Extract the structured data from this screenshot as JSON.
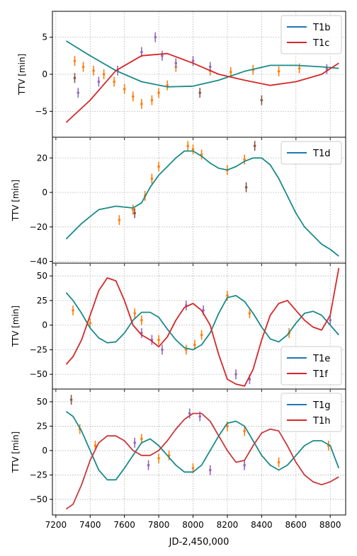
{
  "figure": {
    "xlabel": "JD-2,450,000",
    "xticks": [
      7200,
      7400,
      7600,
      7800,
      8000,
      8200,
      8400,
      8600,
      8800
    ],
    "xlim": [
      7180,
      8890
    ]
  },
  "chart_data": [
    {
      "type": "line",
      "ylabel": "TTV [min]",
      "ylim": [
        -8.5,
        8.5
      ],
      "yticks": [
        -5,
        0,
        5
      ],
      "grid": true,
      "legend_position": "top-right",
      "series": [
        {
          "name": "T1b",
          "color": "#1f77b4",
          "model_color": "#1a8a8a",
          "x": [
            7260,
            7400,
            7550,
            7700,
            7850,
            8000,
            8150,
            8300,
            8450,
            8600,
            8750,
            8850
          ],
          "y": [
            4.5,
            2.5,
            0.5,
            -1.0,
            -1.7,
            -1.6,
            -0.8,
            0.4,
            1.2,
            1.2,
            1.0,
            0.8
          ]
        },
        {
          "name": "T1c",
          "color": "#d62728",
          "model_color": "#d62728",
          "x": [
            7260,
            7400,
            7550,
            7700,
            7850,
            8000,
            8150,
            8300,
            8450,
            8600,
            8750,
            8850
          ],
          "y": [
            -6.5,
            -3.5,
            0.5,
            2.5,
            2.8,
            1.5,
            0.0,
            -0.8,
            -1.5,
            -1.0,
            0.0,
            1.5
          ]
        }
      ],
      "observations": [
        {
          "color": "#ff7f0e",
          "x": [
            7310,
            7360,
            7420,
            7480,
            7540,
            7600,
            7650,
            7700,
            7760,
            7800,
            7850,
            7900,
            8100,
            8220,
            8350,
            8500,
            8620
          ],
          "y": [
            1.8,
            1.0,
            0.5,
            0.0,
            -1.0,
            -2.0,
            -3.0,
            -4.0,
            -3.5,
            -2.5,
            -1.5,
            1.0,
            0.5,
            0.3,
            0.6,
            0.4,
            0.8
          ]
        },
        {
          "color": "#9467bd",
          "x": [
            7330,
            7450,
            7560,
            7700,
            7780,
            7820,
            7900,
            8000,
            8100,
            8780
          ],
          "y": [
            -2.5,
            -1.0,
            0.5,
            3.0,
            5.0,
            2.5,
            1.5,
            1.8,
            1.0,
            0.7
          ]
        },
        {
          "color": "#8c564b",
          "x": [
            7310,
            8040,
            8400
          ],
          "y": [
            -0.5,
            -2.5,
            -3.5
          ]
        }
      ]
    },
    {
      "type": "line",
      "ylabel": "TTV [min]",
      "ylim": [
        -41,
        32
      ],
      "yticks": [
        -40,
        -20,
        0,
        20
      ],
      "grid": true,
      "legend_position": "top-right",
      "series": [
        {
          "name": "T1d",
          "color": "#1f77b4",
          "model_color": "#1a8a8a",
          "x": [
            7260,
            7350,
            7450,
            7550,
            7650,
            7700,
            7750,
            7800,
            7850,
            7900,
            7950,
            8000,
            8050,
            8100,
            8150,
            8200,
            8250,
            8300,
            8350,
            8400,
            8450,
            8500,
            8550,
            8600,
            8650,
            8700,
            8750,
            8800,
            8850
          ],
          "y": [
            -27,
            -18,
            -10,
            -8,
            -9,
            -6,
            3,
            10,
            15,
            20,
            24,
            24,
            21,
            17,
            14,
            13,
            15,
            18,
            20,
            20,
            16,
            8,
            -2,
            -12,
            -20,
            -25,
            -30,
            -33,
            -37
          ]
        }
      ],
      "observations": [
        {
          "color": "#ff7f0e",
          "x": [
            7570,
            7650,
            7720,
            7760,
            7800,
            7970,
            8000,
            8050,
            8200,
            8300
          ],
          "y": [
            -16,
            -10,
            -2,
            8,
            15,
            27,
            25,
            22,
            13,
            19
          ]
        },
        {
          "color": "#8c564b",
          "x": [
            7660,
            8310,
            8360
          ],
          "y": [
            -12,
            3,
            27
          ]
        }
      ]
    },
    {
      "type": "line",
      "ylabel": "TTV [min]",
      "ylim": [
        -65,
        63
      ],
      "yticks": [
        -50,
        -25,
        0,
        25,
        50
      ],
      "grid": true,
      "legend_position": "bottom-right",
      "series": [
        {
          "name": "T1e",
          "color": "#1f77b4",
          "model_color": "#1a8a8a",
          "x": [
            7260,
            7300,
            7350,
            7400,
            7450,
            7500,
            7550,
            7600,
            7650,
            7700,
            7750,
            7800,
            7850,
            7900,
            7950,
            8000,
            8050,
            8100,
            8150,
            8200,
            8250,
            8300,
            8350,
            8400,
            8450,
            8500,
            8550,
            8600,
            8650,
            8700,
            8750,
            8800,
            8850
          ],
          "y": [
            33,
            25,
            12,
            -3,
            -13,
            -18,
            -17,
            -8,
            5,
            13,
            13,
            8,
            -4,
            -15,
            -23,
            -25,
            -20,
            -8,
            12,
            28,
            30,
            24,
            12,
            -2,
            -14,
            -17,
            -10,
            2,
            12,
            14,
            10,
            0,
            -10
          ]
        },
        {
          "name": "T1f",
          "color": "#d62728",
          "model_color": "#d62728",
          "x": [
            7260,
            7300,
            7350,
            7400,
            7450,
            7500,
            7550,
            7600,
            7650,
            7700,
            7750,
            7800,
            7850,
            7900,
            7950,
            8000,
            8050,
            8100,
            8150,
            8200,
            8250,
            8300,
            8350,
            8400,
            8450,
            8500,
            8550,
            8600,
            8650,
            8700,
            8750,
            8800,
            8850
          ],
          "y": [
            -40,
            -32,
            -15,
            10,
            35,
            48,
            45,
            25,
            0,
            -10,
            -15,
            -22,
            -12,
            5,
            18,
            22,
            15,
            0,
            -30,
            -55,
            -60,
            -62,
            -45,
            -15,
            10,
            22,
            25,
            15,
            5,
            -2,
            -5,
            10,
            58
          ]
        }
      ],
      "observations": [
        {
          "color": "#ff7f0e",
          "x": [
            7300,
            7400,
            7660,
            7700,
            7800,
            7960,
            8010,
            8050,
            8200,
            8330,
            8560
          ],
          "y": [
            15,
            2,
            12,
            5,
            -15,
            -25,
            -20,
            -10,
            30,
            12,
            -8
          ]
        },
        {
          "color": "#9467bd",
          "x": [
            7700,
            7760,
            7820,
            7960,
            8060,
            8250,
            8330,
            8800
          ],
          "y": [
            -8,
            -15,
            -25,
            20,
            15,
            -50,
            -55,
            5
          ]
        }
      ]
    },
    {
      "type": "line",
      "ylabel": "TTV [min]",
      "ylim": [
        -66,
        63
      ],
      "yticks": [
        -50,
        -25,
        0,
        25,
        50
      ],
      "grid": true,
      "legend_position": "top-right",
      "series": [
        {
          "name": "T1g",
          "color": "#1f77b4",
          "model_color": "#1a8a8a",
          "x": [
            7260,
            7300,
            7350,
            7400,
            7450,
            7500,
            7550,
            7600,
            7650,
            7700,
            7750,
            7800,
            7850,
            7900,
            7950,
            8000,
            8050,
            8100,
            8150,
            8200,
            8250,
            8300,
            8350,
            8400,
            8450,
            8500,
            8550,
            8600,
            8650,
            8700,
            8750,
            8800,
            8850
          ],
          "y": [
            40,
            35,
            20,
            0,
            -20,
            -30,
            -30,
            -18,
            -5,
            8,
            12,
            5,
            -5,
            -15,
            -22,
            -22,
            -15,
            0,
            15,
            28,
            30,
            25,
            10,
            -5,
            -15,
            -20,
            -15,
            -5,
            5,
            10,
            10,
            5,
            -18
          ]
        },
        {
          "name": "T1h",
          "color": "#d62728",
          "model_color": "#c8383a",
          "x": [
            7260,
            7300,
            7350,
            7400,
            7450,
            7500,
            7550,
            7600,
            7650,
            7700,
            7750,
            7800,
            7850,
            7900,
            7950,
            8000,
            8050,
            8100,
            8150,
            8200,
            8250,
            8300,
            8350,
            8400,
            8450,
            8500,
            8550,
            8600,
            8650,
            8700,
            8750,
            8800,
            8850
          ],
          "y": [
            -60,
            -55,
            -35,
            -10,
            8,
            15,
            15,
            10,
            0,
            -5,
            -5,
            0,
            10,
            22,
            32,
            38,
            38,
            30,
            15,
            0,
            -12,
            -10,
            5,
            18,
            22,
            20,
            5,
            -12,
            -25,
            -32,
            -35,
            -32,
            -27
          ]
        }
      ],
      "observations": [
        {
          "color": "#ff7f0e",
          "x": [
            7340,
            7430,
            7700,
            7800,
            7860,
            8000,
            8200,
            8300,
            8500,
            8790
          ],
          "y": [
            22,
            5,
            12,
            -8,
            -5,
            -18,
            25,
            20,
            -12,
            5
          ]
        },
        {
          "color": "#9467bd",
          "x": [
            7660,
            7740,
            7980,
            8040,
            8100,
            8300
          ],
          "y": [
            8,
            -15,
            38,
            35,
            -20,
            -15
          ]
        },
        {
          "color": "#8c564b",
          "x": [
            7290
          ],
          "y": [
            52
          ]
        }
      ]
    }
  ]
}
